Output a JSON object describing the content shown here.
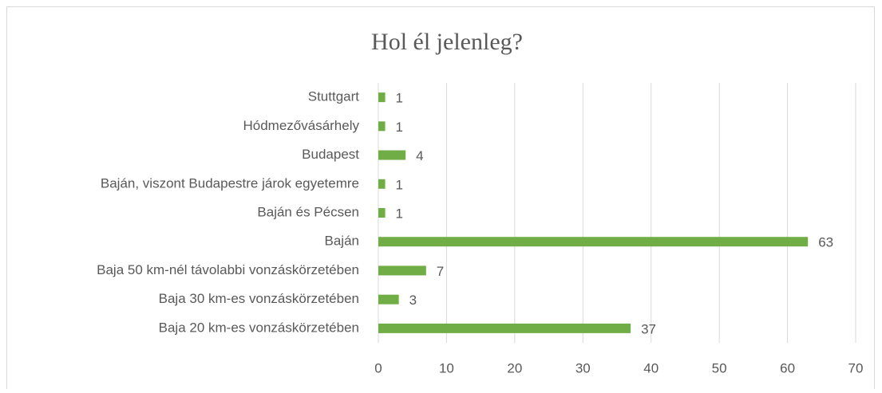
{
  "chart_data": {
    "type": "barh",
    "title": "Hol él jelenleg?",
    "categories": [
      "Stuttgart",
      "Hódmezővásárhely",
      "Budapest",
      "Baján, viszont Budapestre járok egyetemre",
      "Baján és Pécsen",
      "Baján",
      "Baja 50 km-nél távolabbi vonzáskörzetében",
      "Baja 30 km-es vonzáskörzetében",
      "Baja 20 km-es vonzáskörzetében"
    ],
    "values": [
      1,
      1,
      4,
      1,
      1,
      63,
      7,
      3,
      37
    ],
    "color": "#70ad47",
    "xlim": [
      0,
      70
    ],
    "xticks": [
      0,
      10,
      20,
      30,
      40,
      50,
      60,
      70
    ],
    "grid": true
  }
}
